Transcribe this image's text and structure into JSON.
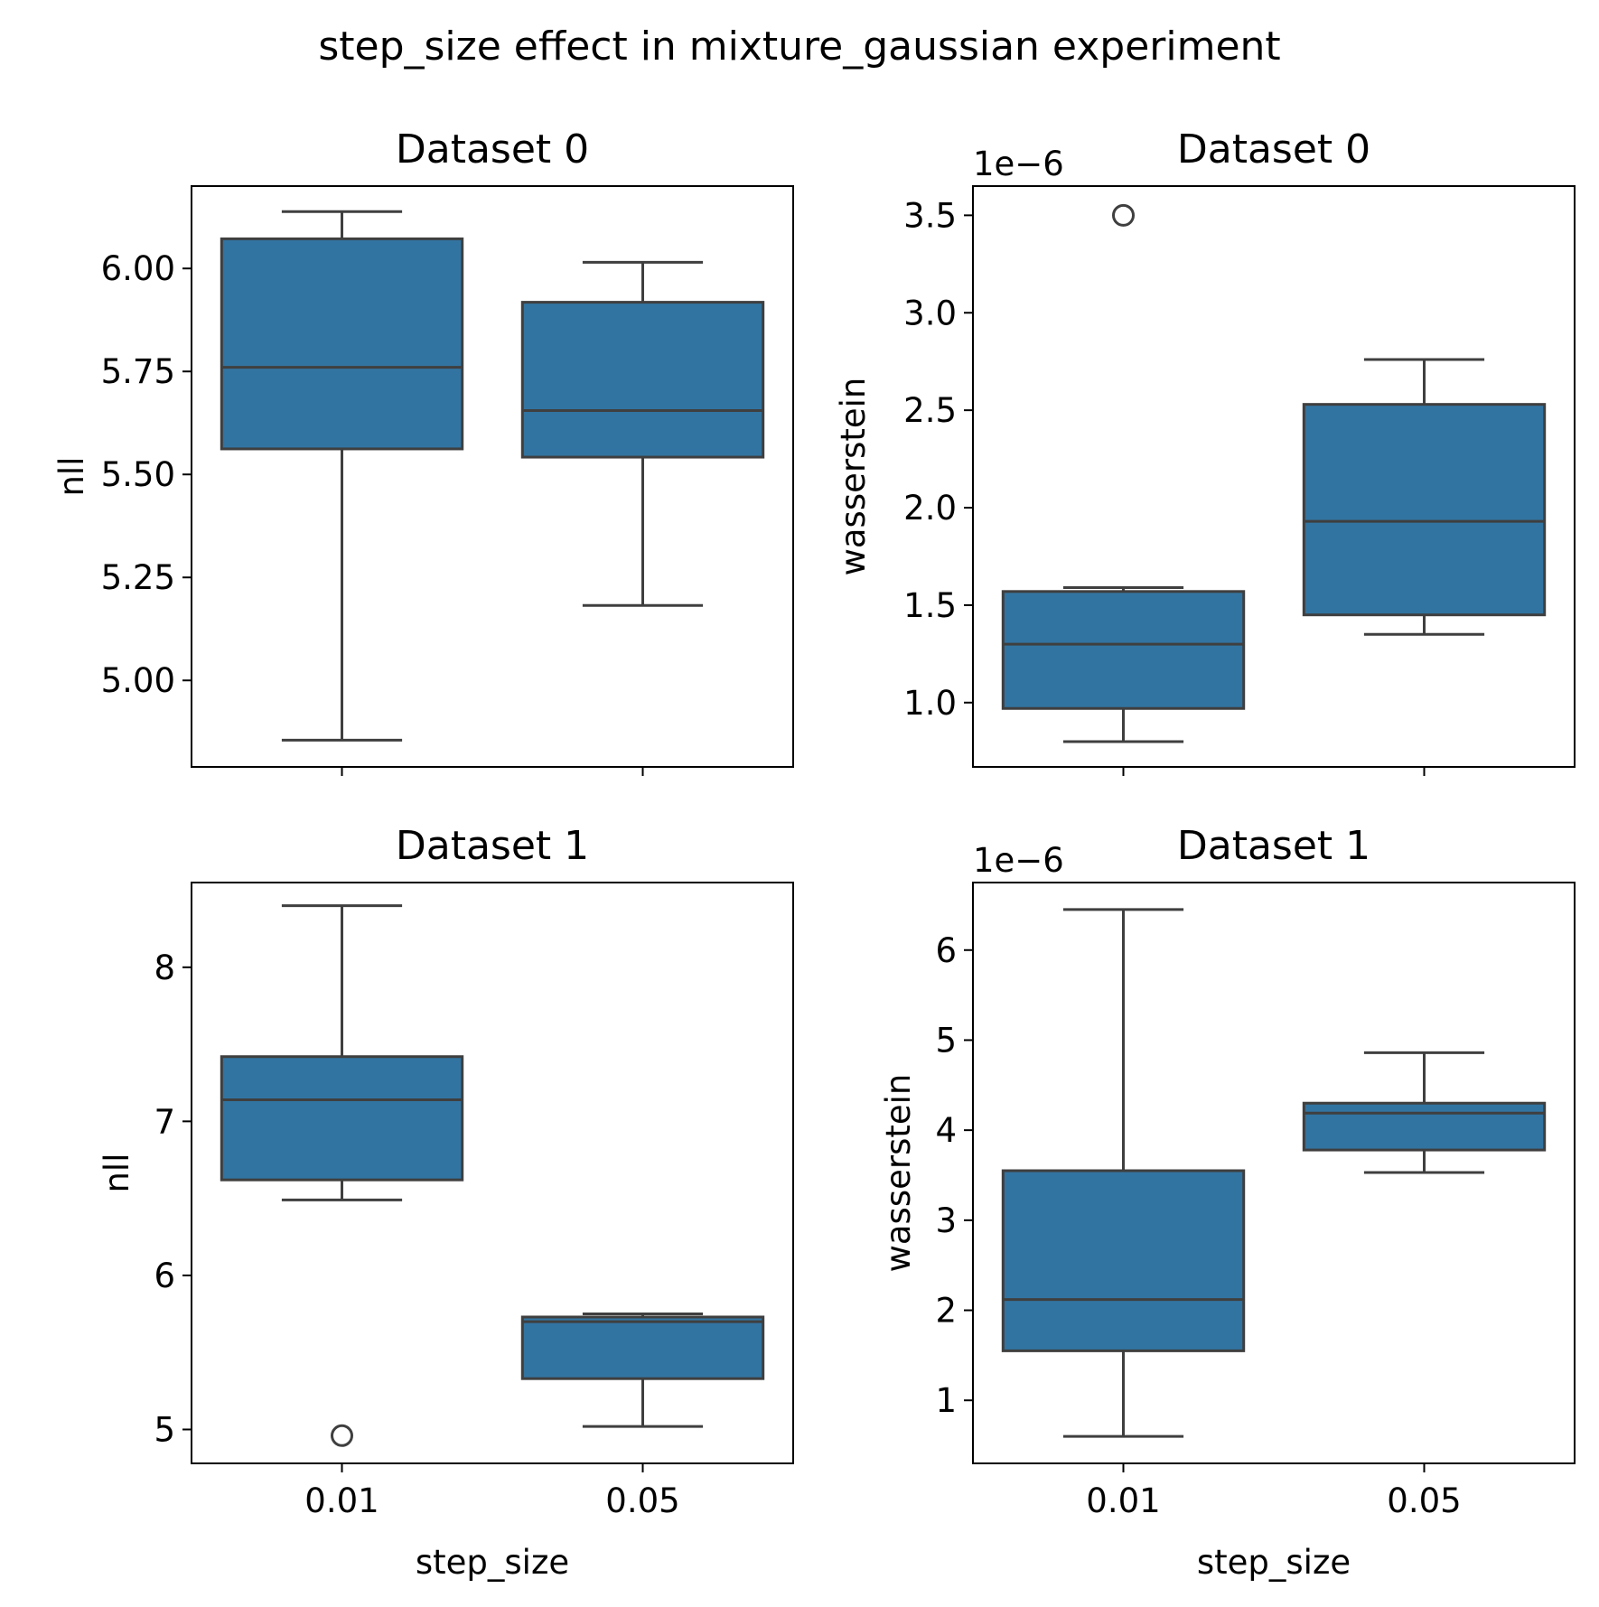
{
  "figure": {
    "suptitle": "step_size effect in mixture_gaussian experiment"
  },
  "colors": {
    "box_fill": "#3274a1",
    "line": "#3f3f3f",
    "axes": "#000000",
    "background": "#ffffff"
  },
  "chart_data": [
    {
      "type": "box",
      "title": "Dataset 0",
      "xlabel": "",
      "ylabel": "nll",
      "categories": [
        "0.01",
        "0.05"
      ],
      "ylim": [
        4.79,
        6.2
      ],
      "yticks": [
        5.0,
        5.25,
        5.5,
        5.75,
        6.0
      ],
      "ytick_labels": [
        "5.00",
        "5.25",
        "5.50",
        "5.75",
        "6.00"
      ],
      "show_xtick_labels": false,
      "offset_label": "",
      "boxes": [
        {
          "category": "0.01",
          "whisker_low": 4.855,
          "q1": 5.562,
          "median": 5.76,
          "q3": 6.072,
          "whisker_high": 6.138,
          "outliers": []
        },
        {
          "category": "0.05",
          "whisker_low": 5.182,
          "q1": 5.542,
          "median": 5.655,
          "q3": 5.918,
          "whisker_high": 6.015,
          "outliers": []
        }
      ]
    },
    {
      "type": "box",
      "title": "Dataset 0",
      "xlabel": "",
      "ylabel": "wasserstein",
      "categories": [
        "0.01",
        "0.05"
      ],
      "ylim": [
        0.67,
        3.65
      ],
      "yticks": [
        1.0,
        1.5,
        2.0,
        2.5,
        3.0,
        3.5
      ],
      "ytick_labels": [
        "1.0",
        "1.5",
        "2.0",
        "2.5",
        "3.0",
        "3.5"
      ],
      "show_xtick_labels": false,
      "offset_label": "1e−6",
      "boxes": [
        {
          "category": "0.01",
          "whisker_low": 0.8,
          "q1": 0.97,
          "median": 1.3,
          "q3": 1.57,
          "whisker_high": 1.59,
          "outliers": [
            3.5
          ]
        },
        {
          "category": "0.05",
          "whisker_low": 1.35,
          "q1": 1.45,
          "median": 1.93,
          "q3": 2.53,
          "whisker_high": 2.76,
          "outliers": []
        }
      ]
    },
    {
      "type": "box",
      "title": "Dataset 1",
      "xlabel": "step_size",
      "ylabel": "nll",
      "categories": [
        "0.01",
        "0.05"
      ],
      "ylim": [
        4.78,
        8.55
      ],
      "yticks": [
        5,
        6,
        7,
        8
      ],
      "ytick_labels": [
        "5",
        "6",
        "7",
        "8"
      ],
      "show_xtick_labels": true,
      "offset_label": "",
      "boxes": [
        {
          "category": "0.01",
          "whisker_low": 6.49,
          "q1": 6.62,
          "median": 7.14,
          "q3": 7.42,
          "whisker_high": 8.4,
          "outliers": [
            4.96
          ]
        },
        {
          "category": "0.05",
          "whisker_low": 5.02,
          "q1": 5.33,
          "median": 5.7,
          "q3": 5.73,
          "whisker_high": 5.75,
          "outliers": []
        }
      ]
    },
    {
      "type": "box",
      "title": "Dataset 1",
      "xlabel": "step_size",
      "ylabel": "wasserstein",
      "categories": [
        "0.01",
        "0.05"
      ],
      "ylim": [
        0.3,
        6.75
      ],
      "yticks": [
        1,
        2,
        3,
        4,
        5,
        6
      ],
      "ytick_labels": [
        "1",
        "2",
        "3",
        "4",
        "5",
        "6"
      ],
      "show_xtick_labels": true,
      "offset_label": "1e−6",
      "boxes": [
        {
          "category": "0.01",
          "whisker_low": 0.6,
          "q1": 1.55,
          "median": 2.12,
          "q3": 3.55,
          "whisker_high": 6.45,
          "outliers": []
        },
        {
          "category": "0.05",
          "whisker_low": 3.53,
          "q1": 3.78,
          "median": 4.19,
          "q3": 4.3,
          "whisker_high": 4.86,
          "outliers": []
        }
      ]
    }
  ]
}
